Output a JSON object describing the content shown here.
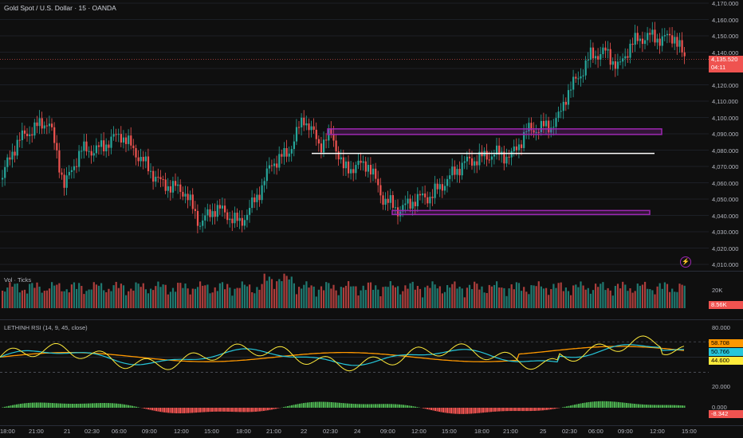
{
  "header": {
    "title": "Gold Spot / U.S. Dollar · 15 · OANDA"
  },
  "price_axis": {
    "labels": [
      "4,170.000",
      "4,160.000",
      "4,150.000",
      "4,140.000",
      "4,130.000",
      "4,120.000",
      "4,110.000",
      "4,100.000",
      "4,090.000",
      "4,080.000",
      "4,070.000",
      "4,060.000",
      "4,050.000",
      "4,040.000",
      "4,030.000",
      "4,020.000",
      "4,010.000"
    ],
    "current_price": "4,135.520",
    "countdown": "04:11"
  },
  "volume": {
    "label": "Vol · Ticks",
    "axis_label": "20K",
    "current": "8.56K"
  },
  "rsi": {
    "label": "LETHINH RSI (14, 9, 45, close)",
    "axis_labels": [
      "80.000",
      "20.000",
      "0.000"
    ],
    "values": [
      "58.708",
      "50.766",
      "44.600"
    ],
    "hist_value": "-8.342"
  },
  "time_axis": [
    "18:00",
    "21:00",
    "21",
    "02:30",
    "06:00",
    "09:00",
    "12:00",
    "15:00",
    "18:00",
    "21:00",
    "22",
    "02:30",
    "24",
    "09:00",
    "12:00",
    "15:00",
    "18:00",
    "21:00",
    "25",
    "02:30",
    "06:00",
    "09:00",
    "12:00",
    "15:00"
  ],
  "colors": {
    "up": "#26a69a",
    "down": "#ef5350",
    "zone": "#9c27b0",
    "rsi": "#ffeb3b",
    "signal": "#26c6da",
    "slow": "#ff9800"
  },
  "icons": {
    "alert": "lightning-bolt-icon"
  }
}
